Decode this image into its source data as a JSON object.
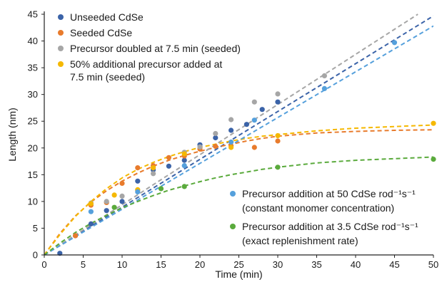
{
  "chart_data": {
    "type": "scatter",
    "title": "",
    "xlabel": "Time (min)",
    "ylabel": "Length (nm)",
    "xlim": [
      0,
      50
    ],
    "ylim": [
      0,
      45
    ],
    "xticks": [
      0,
      5,
      10,
      15,
      20,
      25,
      30,
      35,
      40,
      45,
      50
    ],
    "yticks": [
      0,
      5,
      10,
      15,
      20,
      25,
      30,
      35,
      40,
      45
    ],
    "grid": false,
    "series": [
      {
        "name": "Unseeded CdSe",
        "color": "#3b63a8",
        "points": [
          [
            2,
            0.3
          ],
          [
            4,
            3.6
          ],
          [
            6,
            5.8
          ],
          [
            8,
            8.3
          ],
          [
            10,
            10
          ],
          [
            12,
            13.8
          ],
          [
            14,
            15.9
          ],
          [
            16,
            16.6
          ],
          [
            18,
            17.7
          ],
          [
            20,
            20.6
          ],
          [
            22,
            21.9
          ],
          [
            24,
            23.3
          ],
          [
            26,
            24.4
          ],
          [
            28,
            27.2
          ],
          [
            30,
            28.6
          ]
        ],
        "fit": {
          "kind": "linear",
          "x": [
            0,
            50
          ],
          "y": [
            0,
            44.7
          ]
        }
      },
      {
        "name": "Seeded CdSe",
        "color": "#e87b2c",
        "points": [
          [
            4,
            3.6
          ],
          [
            6,
            9.3
          ],
          [
            8,
            9.8
          ],
          [
            10,
            13.4
          ],
          [
            12,
            16.3
          ],
          [
            14,
            16.7
          ],
          [
            16,
            18.2
          ],
          [
            18,
            18.5
          ],
          [
            20,
            19.8
          ],
          [
            22,
            20.3
          ],
          [
            24,
            20.4
          ],
          [
            27,
            20.1
          ],
          [
            30,
            21.3
          ]
        ],
        "fit": {
          "kind": "saturating",
          "x": [
            0,
            2,
            4,
            6,
            8,
            10,
            12,
            14,
            16,
            18,
            20,
            22,
            24,
            26,
            28,
            30,
            35,
            40,
            45,
            50
          ],
          "y": [
            0,
            4.0,
            7.3,
            9.9,
            12.0,
            13.8,
            15.3,
            16.6,
            17.7,
            18.6,
            19.4,
            20.1,
            20.7,
            21.3,
            21.8,
            22.2,
            22.8,
            23.1,
            23.3,
            23.4
          ]
        }
      },
      {
        "name": "Precursor doubled at 7.5 min (seeded)",
        "color": "#a6a6a6",
        "points": [
          [
            6,
            9.7
          ],
          [
            8,
            10.0
          ],
          [
            10,
            11.0
          ],
          [
            12,
            12.1
          ],
          [
            14,
            15.2
          ],
          [
            18,
            19.2
          ],
          [
            20,
            20.2
          ],
          [
            22,
            22.7
          ],
          [
            24,
            25.3
          ],
          [
            27,
            28.6
          ],
          [
            30,
            30.1
          ],
          [
            36,
            33.5
          ]
        ],
        "fit": {
          "kind": "linear",
          "x": [
            0,
            48
          ],
          "y": [
            0,
            45
          ]
        }
      },
      {
        "name": "50% additional precursor added at 7.5 min (seeded)",
        "color": "#f5b800",
        "points": [
          [
            6,
            9.6
          ],
          [
            9,
            11.2
          ],
          [
            12,
            12.2
          ],
          [
            14,
            16.3
          ],
          [
            18,
            18.9
          ],
          [
            24,
            20.1
          ],
          [
            30,
            22.3
          ],
          [
            50,
            24.6
          ]
        ],
        "fit": {
          "kind": "saturating",
          "x": [
            0,
            2,
            4,
            6,
            8,
            10,
            12,
            14,
            16,
            18,
            20,
            22,
            24,
            26,
            28,
            30,
            35,
            40,
            45,
            50
          ],
          "y": [
            0,
            3.8,
            7.2,
            10.0,
            12.4,
            14.4,
            16.0,
            17.3,
            18.4,
            19.3,
            20.1,
            20.7,
            21.3,
            21.8,
            22.2,
            22.5,
            23.2,
            23.7,
            24.0,
            24.3
          ]
        }
      },
      {
        "name": "Precursor addition at 50 CdSe rod⁻¹s⁻¹ (constant monomer concentration)",
        "color": "#55a0dc",
        "points": [
          [
            6,
            8.1
          ],
          [
            12,
            11.8
          ],
          [
            18,
            16.7
          ],
          [
            24,
            21.1
          ],
          [
            27,
            25.2
          ],
          [
            36,
            31.1
          ],
          [
            45,
            39.7
          ]
        ],
        "fit": {
          "kind": "linear",
          "x": [
            0,
            50
          ],
          "y": [
            0,
            42.8
          ]
        }
      },
      {
        "name": "Precursor addition at 3.5 CdSe rod⁻¹s⁻¹ (exact replenishment rate)",
        "color": "#5aaa3c",
        "points": [
          [
            9,
            8.9
          ],
          [
            15,
            12.4
          ],
          [
            18,
            12.8
          ],
          [
            30,
            16.4
          ],
          [
            50,
            17.9
          ]
        ],
        "fit": {
          "kind": "saturating",
          "x": [
            0,
            2,
            4,
            6,
            8,
            10,
            12,
            14,
            16,
            18,
            20,
            22,
            24,
            26,
            28,
            30,
            35,
            40,
            45,
            50
          ],
          "y": [
            0,
            2.2,
            4.2,
            5.9,
            7.4,
            8.8,
            10.0,
            11.1,
            12.1,
            12.9,
            13.7,
            14.4,
            15.0,
            15.5,
            16.0,
            16.4,
            17.2,
            17.7,
            18.0,
            18.3
          ]
        }
      }
    ],
    "legend_top": {
      "placement": "top-left",
      "entries": [
        {
          "lines": [
            "Unseeded CdSe"
          ],
          "color": "#3b63a8"
        },
        {
          "lines": [
            "Seeded CdSe"
          ],
          "color": "#e87b2c"
        },
        {
          "lines": [
            "Precursor doubled at 7.5 min (seeded)"
          ],
          "color": "#a6a6a6"
        },
        {
          "lines": [
            "50% additional precursor added at",
            "7.5 min (seeded)"
          ],
          "color": "#f5b800"
        }
      ]
    },
    "legend_bottom": {
      "placement": "bottom-right",
      "entries": [
        {
          "lines": [
            "Precursor addition at 50 CdSe rod⁻¹s⁻¹",
            "(constant monomer concentration)"
          ],
          "color": "#55a0dc"
        },
        {
          "lines": [
            "Precursor addition at 3.5 CdSe rod⁻¹s⁻¹",
            "(exact replenishment rate)"
          ],
          "color": "#5aaa3c"
        }
      ]
    }
  }
}
